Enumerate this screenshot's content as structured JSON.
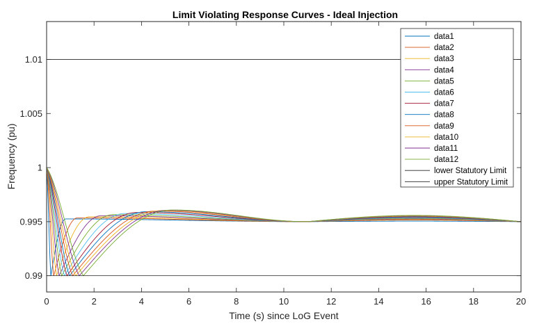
{
  "chart_data": {
    "type": "line",
    "title": "Limit Violating Response Curves - Ideal Injection",
    "xlabel": "Time (s) since LoG Event",
    "ylabel": "Frequency (pu)",
    "xlim": [
      0,
      20
    ],
    "ylim": [
      0.9885,
      1.0135
    ],
    "xticks": [
      0,
      2,
      4,
      6,
      8,
      10,
      12,
      14,
      16,
      18,
      20
    ],
    "yticks": [
      0.99,
      0.995,
      1,
      1.005,
      1.01
    ],
    "ytick_labels": [
      "0.99",
      "0.995",
      "1",
      "1.005",
      "1.01"
    ],
    "grid": false,
    "legend_position": "top-right",
    "series": [
      {
        "name": "data1",
        "color": "#0072BD",
        "nadir_time": 0.18,
        "settle_peak": 0.99525,
        "peak_time": 0.8,
        "late_peak": 0.99505
      },
      {
        "name": "data2",
        "color": "#D95319",
        "nadir_time": 0.3,
        "settle_peak": 0.99535,
        "peak_time": 1.3,
        "late_peak": 0.99515
      },
      {
        "name": "data3",
        "color": "#EDB120",
        "nadir_time": 0.42,
        "settle_peak": 0.99545,
        "peak_time": 1.8,
        "late_peak": 0.9952
      },
      {
        "name": "data4",
        "color": "#7E2F8E",
        "nadir_time": 0.53,
        "settle_peak": 0.99555,
        "peak_time": 2.3,
        "late_peak": 0.99525
      },
      {
        "name": "data5",
        "color": "#77AC30",
        "nadir_time": 0.64,
        "settle_peak": 0.99565,
        "peak_time": 2.8,
        "late_peak": 0.9953
      },
      {
        "name": "data6",
        "color": "#4DBEEE",
        "nadir_time": 0.75,
        "settle_peak": 0.99575,
        "peak_time": 3.3,
        "late_peak": 0.99535
      },
      {
        "name": "data7",
        "color": "#A2142F",
        "nadir_time": 0.86,
        "settle_peak": 0.99585,
        "peak_time": 3.8,
        "late_peak": 0.9954
      },
      {
        "name": "data8",
        "color": "#0072BD",
        "nadir_time": 0.97,
        "settle_peak": 0.99592,
        "peak_time": 4.2,
        "late_peak": 0.99545
      },
      {
        "name": "data9",
        "color": "#D95319",
        "nadir_time": 1.1,
        "settle_peak": 0.99598,
        "peak_time": 4.6,
        "late_peak": 0.9955
      },
      {
        "name": "data10",
        "color": "#EDB120",
        "nadir_time": 1.23,
        "settle_peak": 0.99603,
        "peak_time": 4.9,
        "late_peak": 0.99553
      },
      {
        "name": "data11",
        "color": "#7E2F8E",
        "nadir_time": 1.38,
        "settle_peak": 0.99605,
        "peak_time": 5.1,
        "late_peak": 0.99556
      },
      {
        "name": "data12",
        "color": "#77AC30",
        "nadir_time": 1.55,
        "settle_peak": 0.99608,
        "peak_time": 5.3,
        "late_peak": 0.99558
      }
    ],
    "shared": {
      "initial": 1.0,
      "nadir": 0.99,
      "final": 0.995,
      "crossover_time": 11
    },
    "limits": [
      {
        "name": "lower Statutory Limit",
        "value": 0.99,
        "color": "#262626"
      },
      {
        "name": "upper Statutory Limit",
        "value": 1.01,
        "color": "#262626"
      }
    ]
  }
}
